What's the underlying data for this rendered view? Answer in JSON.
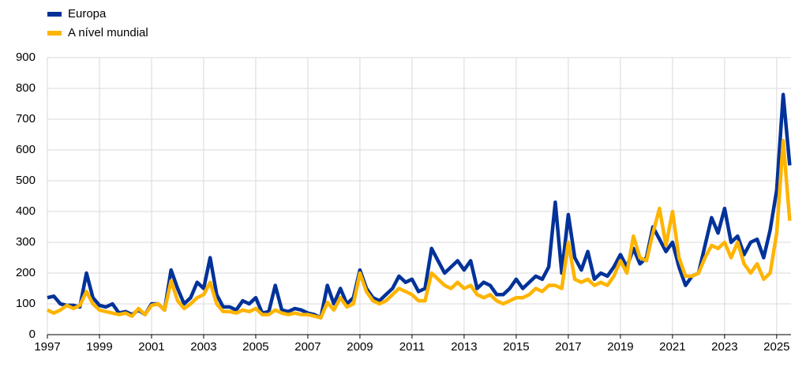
{
  "chart_data": {
    "type": "line",
    "x": [
      1997,
      1997.25,
      1997.5,
      1997.75,
      1998,
      1998.25,
      1998.5,
      1998.75,
      1999,
      1999.25,
      1999.5,
      1999.75,
      2000,
      2000.25,
      2000.5,
      2000.75,
      2001,
      2001.25,
      2001.5,
      2001.75,
      2002,
      2002.25,
      2002.5,
      2002.75,
      2003,
      2003.25,
      2003.5,
      2003.75,
      2004,
      2004.25,
      2004.5,
      2004.75,
      2005,
      2005.25,
      2005.5,
      2005.75,
      2006,
      2006.25,
      2006.5,
      2006.75,
      2007,
      2007.25,
      2007.5,
      2007.75,
      2008,
      2008.25,
      2008.5,
      2008.75,
      2009,
      2009.25,
      2009.5,
      2009.75,
      2010,
      2010.25,
      2010.5,
      2010.75,
      2011,
      2011.25,
      2011.5,
      2011.75,
      2012,
      2012.25,
      2012.5,
      2012.75,
      2013,
      2013.25,
      2013.5,
      2013.75,
      2014,
      2014.25,
      2014.5,
      2014.75,
      2015,
      2015.25,
      2015.5,
      2015.75,
      2016,
      2016.25,
      2016.5,
      2016.75,
      2017,
      2017.25,
      2017.5,
      2017.75,
      2018,
      2018.25,
      2018.5,
      2018.75,
      2019,
      2019.25,
      2019.5,
      2019.75,
      2020,
      2020.25,
      2020.5,
      2020.75,
      2021,
      2021.25,
      2021.5,
      2021.75,
      2022,
      2022.25,
      2022.5,
      2022.75,
      2023,
      2023.25,
      2023.5,
      2023.75,
      2024,
      2024.25,
      2024.5,
      2024.75,
      2025,
      2025.25,
      2025.5
    ],
    "series": [
      {
        "name": "Europa",
        "color": "#003299",
        "values": [
          120,
          125,
          100,
          95,
          95,
          90,
          200,
          120,
          95,
          90,
          100,
          70,
          75,
          65,
          80,
          65,
          100,
          100,
          80,
          210,
          150,
          100,
          120,
          170,
          150,
          250,
          130,
          90,
          90,
          80,
          110,
          100,
          120,
          70,
          75,
          160,
          80,
          75,
          85,
          80,
          70,
          65,
          55,
          160,
          100,
          150,
          100,
          120,
          210,
          150,
          120,
          110,
          130,
          150,
          190,
          170,
          180,
          140,
          150,
          280,
          240,
          200,
          220,
          240,
          210,
          240,
          150,
          170,
          160,
          130,
          130,
          150,
          180,
          150,
          170,
          190,
          180,
          220,
          430,
          200,
          390,
          250,
          210,
          270,
          180,
          200,
          190,
          220,
          260,
          220,
          280,
          230,
          250,
          350,
          310,
          270,
          300,
          220,
          160,
          190,
          200,
          290,
          380,
          330,
          410,
          300,
          320,
          260,
          300,
          310,
          250,
          340,
          470,
          780,
          550
        ]
      },
      {
        "name": "A nível mundial",
        "color": "#ffb400",
        "values": [
          80,
          70,
          80,
          95,
          85,
          95,
          140,
          100,
          80,
          75,
          70,
          65,
          70,
          60,
          85,
          65,
          95,
          100,
          80,
          175,
          110,
          85,
          100,
          120,
          130,
          170,
          100,
          75,
          75,
          70,
          80,
          75,
          85,
          65,
          65,
          80,
          70,
          65,
          70,
          65,
          65,
          60,
          55,
          105,
          80,
          120,
          90,
          100,
          200,
          140,
          110,
          100,
          110,
          130,
          150,
          140,
          130,
          110,
          110,
          200,
          180,
          160,
          150,
          170,
          150,
          160,
          130,
          120,
          130,
          110,
          100,
          110,
          120,
          120,
          130,
          150,
          140,
          160,
          160,
          150,
          300,
          180,
          170,
          180,
          160,
          170,
          160,
          190,
          240,
          200,
          320,
          250,
          240,
          330,
          410,
          290,
          400,
          250,
          190,
          190,
          200,
          250,
          290,
          280,
          300,
          250,
          300,
          230,
          200,
          230,
          180,
          200,
          330,
          630,
          370
        ]
      }
    ],
    "xlim": [
      1997,
      2025.55
    ],
    "xticks": [
      1997,
      1999,
      2001,
      2003,
      2005,
      2007,
      2009,
      2011,
      2013,
      2015,
      2017,
      2019,
      2021,
      2023,
      2025
    ],
    "ylim": [
      0,
      900
    ],
    "yticks": [
      0,
      100,
      200,
      300,
      400,
      500,
      600,
      700,
      800,
      900
    ],
    "grid": true,
    "legend": "top-left"
  }
}
